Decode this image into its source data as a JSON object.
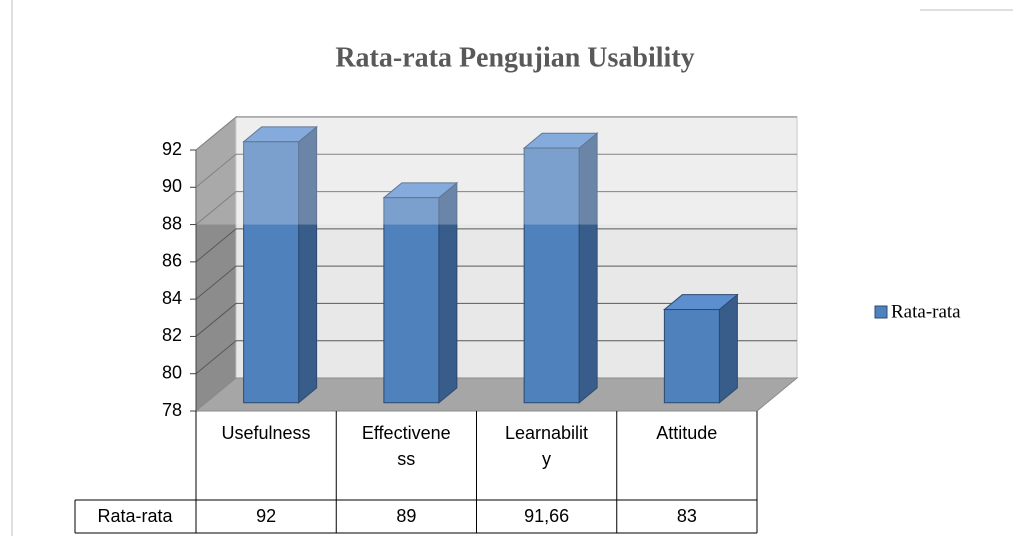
{
  "chart_data": {
    "type": "bar3d",
    "title": "Rata-rata Pengujian Usability",
    "categories": [
      "Usefulness",
      "Effectiveness",
      "Learnability",
      "Attitude"
    ],
    "series": [
      {
        "name": "Rata-rata",
        "color": "#4f81bd",
        "values": [
          92,
          89,
          91.66,
          83
        ],
        "value_labels": [
          "92",
          "89",
          "91,66",
          "83"
        ]
      }
    ],
    "ylim": [
      78,
      92
    ],
    "yticks": [
      78,
      80,
      82,
      84,
      86,
      88,
      90,
      92
    ],
    "grid": true,
    "legend": "right",
    "data_table": true
  }
}
